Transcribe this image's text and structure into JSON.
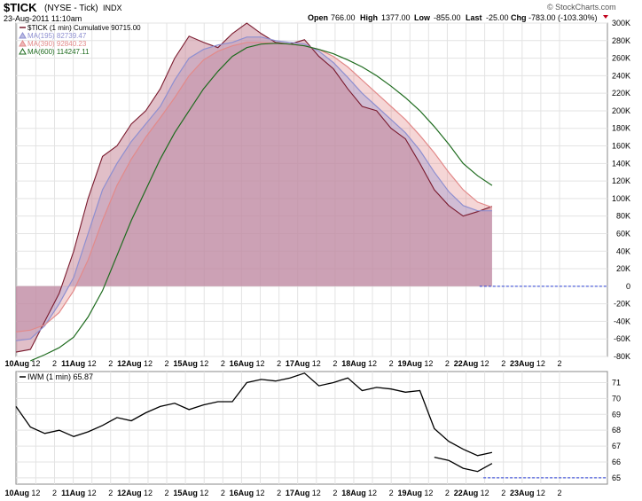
{
  "header": {
    "symbol": "$TICK",
    "exchange": "(NYSE - Tick)",
    "index_tag": "INDX",
    "datetime": "23-Aug-2011 11:10am",
    "open_label": "Open",
    "open_value": "766.00",
    "high_label": "High",
    "high_value": "1377.00",
    "low_label": "Low",
    "low_value": "-855.00",
    "last_label": "Last",
    "last_value": "-25.00",
    "chg_label": "Chg",
    "chg_value": "-783.00 (-103.30%)",
    "copyright": "© StockCharts.com"
  },
  "colors": {
    "tick_line": "#7a1b2e",
    "ma195": "#8e8fd0",
    "ma390": "#e28a8a",
    "ma600": "#1e6b1e",
    "fill": "#c98a9b",
    "dashed": "#2b3fd6"
  },
  "chart_data": [
    {
      "type": "line",
      "legend": [
        {
          "name": "$TICK (1 min) Cumulative 90715.00",
          "color": "#7a1b2e"
        },
        {
          "name": "MA(195) 82739.47",
          "color": "#8e8fd0"
        },
        {
          "name": "MA(390) 92840.23",
          "color": "#e28a8a"
        },
        {
          "name": "MA(600) 114247.11",
          "color": "#1e6b1e"
        }
      ],
      "ylim": [
        -80000,
        300000
      ],
      "yticks": [
        "300K",
        "280K",
        "260K",
        "240K",
        "220K",
        "200K",
        "180K",
        "160K",
        "140K",
        "120K",
        "100K",
        "80K",
        "60K",
        "40K",
        "20K",
        "0",
        "-20K",
        "-40K",
        "-60K",
        "-80K"
      ],
      "grid": true,
      "x_labels": [
        "10Aug",
        "12",
        "2",
        "11Aug",
        "12",
        "2",
        "12Aug",
        "12",
        "2",
        "15Aug",
        "12",
        "2",
        "16Aug",
        "12",
        "2",
        "17Aug",
        "12",
        "2",
        "18Aug",
        "12",
        "2",
        "19Aug",
        "12",
        "2",
        "22Aug",
        "12",
        "2",
        "23Aug",
        "12",
        "2"
      ],
      "x": [
        0,
        0.25,
        0.5,
        0.75,
        1,
        1.25,
        1.5,
        1.75,
        2,
        2.25,
        2.5,
        2.75,
        3,
        3.25,
        3.5,
        3.75,
        4,
        4.25,
        4.5,
        4.75,
        5,
        5.25,
        5.5,
        5.75,
        6,
        6.25,
        6.5,
        6.75,
        7,
        7.25,
        7.5,
        7.75,
        8,
        8.25,
        8.5,
        8.75,
        9,
        9.25,
        9.5,
        9.75,
        10,
        10.25
      ],
      "series": [
        {
          "name": "$TICK (1 min) Cumulative 90715.00",
          "values": [
            -75000,
            -72000,
            -40000,
            -8000,
            40000,
            100000,
            148000,
            160000,
            185000,
            200000,
            225000,
            260000,
            285000,
            278000,
            272000,
            288000,
            300000,
            288000,
            278000,
            276000,
            281000,
            262000,
            248000,
            225000,
            205000,
            200000,
            180000,
            168000,
            140000,
            110000,
            92000,
            80000,
            85000,
            91000,
            null,
            null,
            null,
            null,
            null,
            null,
            null,
            null
          ]
        },
        {
          "name": "MA(195) 82739.47",
          "values": [
            -62000,
            -60000,
            -45000,
            -20000,
            10000,
            60000,
            110000,
            140000,
            165000,
            185000,
            205000,
            235000,
            260000,
            270000,
            275000,
            278000,
            284000,
            284000,
            280000,
            278000,
            276000,
            268000,
            255000,
            238000,
            220000,
            205000,
            190000,
            175000,
            155000,
            130000,
            108000,
            92000,
            86000,
            86000,
            null,
            null,
            null,
            null,
            null,
            null,
            null,
            null
          ]
        },
        {
          "name": "MA(390) 92840.23",
          "values": [
            -52000,
            -50000,
            -44000,
            -30000,
            -5000,
            30000,
            75000,
            115000,
            145000,
            170000,
            192000,
            215000,
            240000,
            258000,
            268000,
            274000,
            278000,
            278000,
            277000,
            276000,
            274000,
            270000,
            262000,
            250000,
            235000,
            220000,
            205000,
            190000,
            172000,
            152000,
            130000,
            110000,
            96000,
            90000,
            null,
            null,
            null,
            null,
            null,
            null,
            null,
            null
          ]
        },
        {
          "name": "MA(600) 114247.11",
          "values": [
            null,
            -85000,
            -78000,
            -70000,
            -58000,
            -35000,
            -5000,
            35000,
            75000,
            110000,
            145000,
            175000,
            200000,
            225000,
            245000,
            262000,
            272000,
            276000,
            277000,
            276000,
            274000,
            270000,
            265000,
            258000,
            250000,
            240000,
            228000,
            215000,
            200000,
            182000,
            162000,
            140000,
            126000,
            115000,
            null,
            null,
            null,
            null,
            null,
            null,
            null,
            null
          ]
        }
      ],
      "zero_line_label": "0"
    },
    {
      "type": "line",
      "legend": [
        {
          "name": "IWM (1 min) 65.87",
          "color": "#000000"
        }
      ],
      "ylim": [
        64.6,
        71.7
      ],
      "yticks": [
        "71",
        "70",
        "69",
        "68",
        "67",
        "66",
        "65"
      ],
      "grid": true,
      "x_labels": [
        "10Aug",
        "12",
        "2",
        "11Aug",
        "12",
        "2",
        "12Aug",
        "12",
        "2",
        "15Aug",
        "12",
        "2",
        "16Aug",
        "12",
        "2",
        "17Aug",
        "12",
        "2",
        "18Aug",
        "12",
        "2",
        "19Aug",
        "12",
        "2",
        "22Aug",
        "12",
        "2",
        "23Aug",
        "12",
        "2"
      ],
      "x": [
        0,
        0.25,
        0.5,
        0.75,
        1,
        1.25,
        1.5,
        1.75,
        2,
        2.25,
        2.5,
        2.75,
        3,
        3.25,
        3.5,
        3.75,
        4,
        4.25,
        4.5,
        4.75,
        5,
        5.25,
        5.5,
        5.75,
        6,
        6.25,
        6.5,
        6.75,
        7,
        7.25,
        7.5,
        7.75,
        8,
        8.25
      ],
      "series": [
        {
          "name": "IWM (1 min) 65.87",
          "values": [
            69.5,
            68.2,
            67.8,
            68.0,
            67.6,
            67.9,
            68.3,
            68.8,
            68.6,
            69.1,
            69.5,
            69.7,
            69.3,
            69.6,
            69.8,
            69.8,
            71.0,
            71.2,
            71.1,
            71.3,
            71.6,
            70.8,
            71.0,
            71.3,
            70.5,
            70.7,
            70.6,
            70.4,
            70.5,
            68.1,
            67.3,
            66.8,
            66.4,
            66.6
          ]
        },
        {
          "name": "IWM (1 min) 65.87 late",
          "values": [
            null,
            null,
            null,
            null,
            null,
            null,
            null,
            null,
            null,
            null,
            null,
            null,
            null,
            null,
            null,
            null,
            null,
            null,
            null,
            null,
            null,
            null,
            null,
            null,
            null,
            null,
            null,
            null,
            null,
            66.3,
            66.1,
            65.6,
            65.4,
            65.9
          ]
        }
      ],
      "ref_line_value": 65
    }
  ]
}
